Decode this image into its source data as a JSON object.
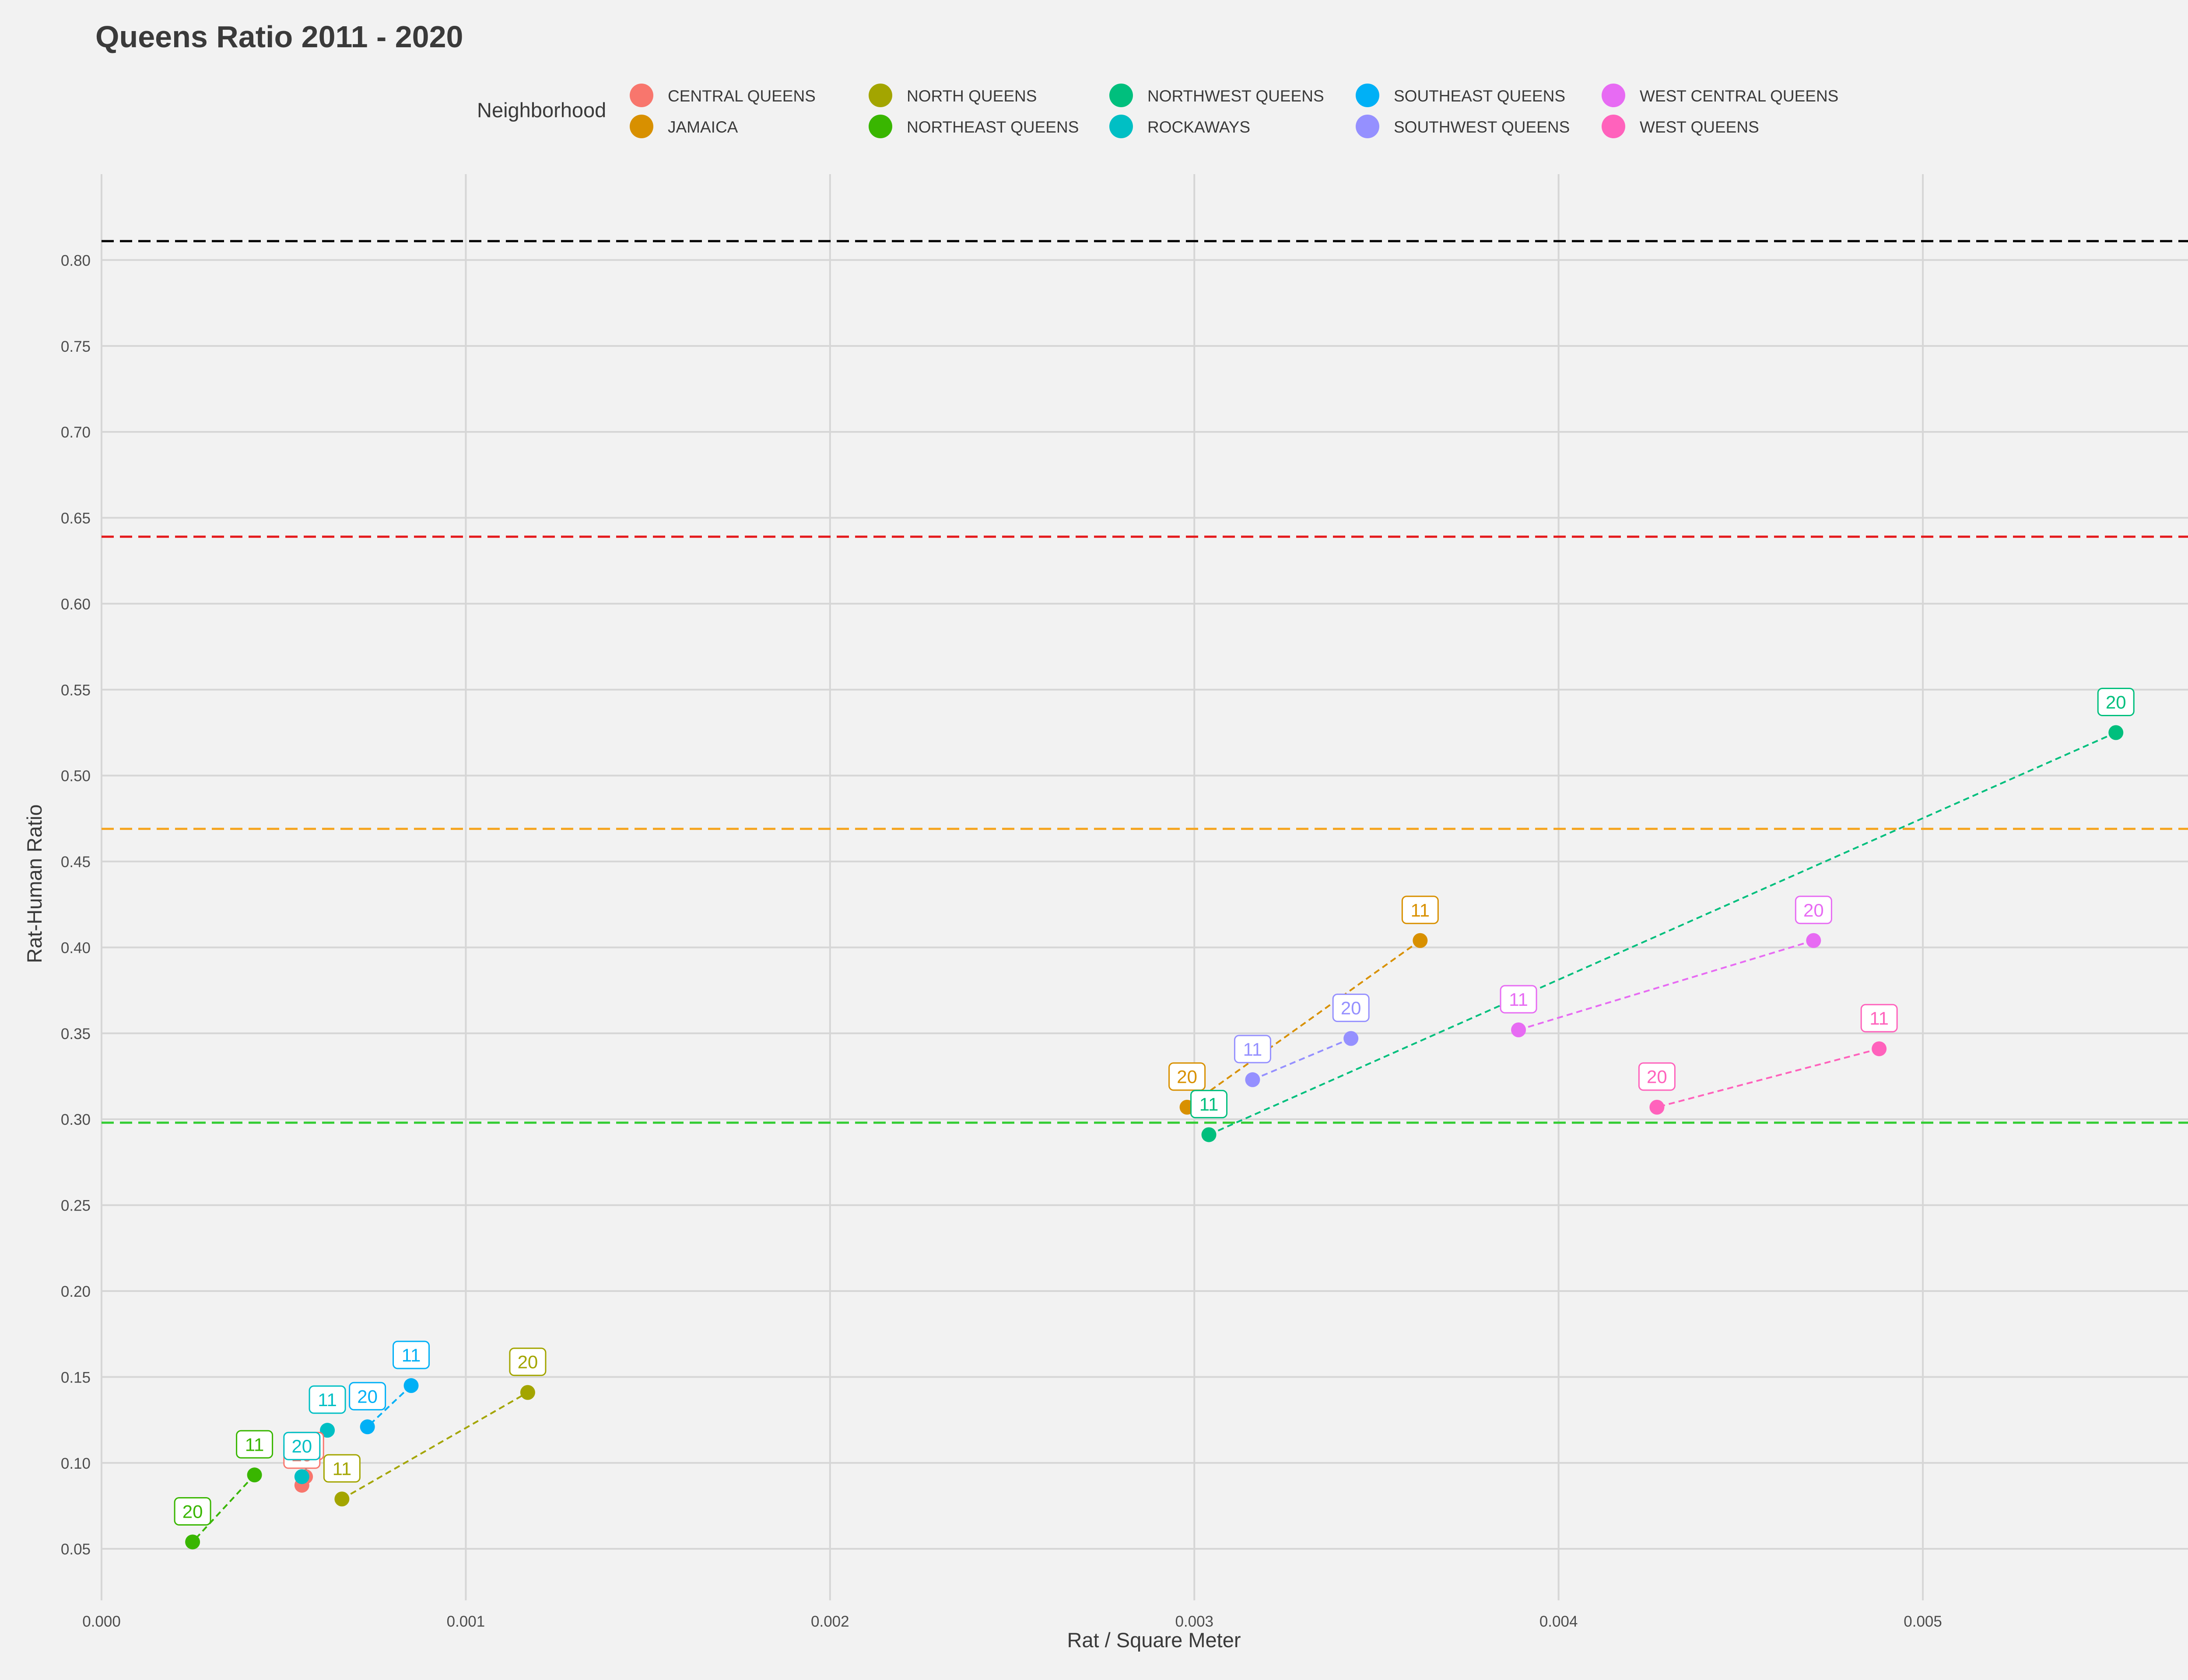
{
  "chart_data": {
    "type": "scatter",
    "title": "Queens Ratio 2011 - 2020",
    "xlabel": "Rat / Square Meter",
    "ylabel": "Rat-Human Ratio",
    "xlim": [
      0.0,
      0.0058
    ],
    "ylim": [
      0.02,
      0.85
    ],
    "x_ticks": [
      0.0,
      0.001,
      0.002,
      0.003,
      0.004,
      0.005
    ],
    "x_tick_labels": [
      "0.000",
      "0.001",
      "0.002",
      "0.003",
      "0.004",
      "0.005"
    ],
    "y_ticks": [
      0.05,
      0.1,
      0.15,
      0.2,
      0.25,
      0.3,
      0.35,
      0.4,
      0.45,
      0.5,
      0.55,
      0.6,
      0.65,
      0.7,
      0.75,
      0.8
    ],
    "y_tick_labels": [
      "0.05",
      "0.10",
      "0.15",
      "0.20",
      "0.25",
      "0.30",
      "0.35",
      "0.40",
      "0.45",
      "0.50",
      "0.55",
      "0.60",
      "0.65",
      "0.70",
      "0.75",
      "0.80"
    ],
    "grid": true,
    "legend": {
      "title": "Neighborhood",
      "placement": "top"
    },
    "reference_lines": [
      {
        "y": 0.811,
        "color": "#000000"
      },
      {
        "y": 0.639,
        "color": "#e41a1c"
      },
      {
        "y": 0.469,
        "color": "#f5a623"
      },
      {
        "y": 0.298,
        "color": "#33cc33"
      }
    ],
    "series": [
      {
        "name": "CENTRAL QUEENS",
        "color": "#F8766D",
        "x": [
          0.00056,
          0.00055
        ],
        "y": [
          0.092,
          0.087
        ],
        "labels": [
          "11",
          "20"
        ]
      },
      {
        "name": "JAMAICA",
        "color": "#D89000",
        "x": [
          0.00362,
          0.00298
        ],
        "y": [
          0.404,
          0.307
        ],
        "labels": [
          "11",
          "20"
        ]
      },
      {
        "name": "NORTH QUEENS",
        "color": "#A3A500",
        "x": [
          0.00066,
          0.00117
        ],
        "y": [
          0.079,
          0.141
        ],
        "labels": [
          "11",
          "20"
        ]
      },
      {
        "name": "NORTHEAST QUEENS",
        "color": "#39B600",
        "x": [
          0.00042,
          0.00025
        ],
        "y": [
          0.093,
          0.054
        ],
        "labels": [
          "11",
          "20"
        ]
      },
      {
        "name": "NORTHWEST QUEENS",
        "color": "#00BF7D",
        "x": [
          0.00304,
          0.00553
        ],
        "y": [
          0.291,
          0.525
        ],
        "labels": [
          "11",
          "20"
        ]
      },
      {
        "name": "ROCKAWAYS",
        "color": "#00BFC4",
        "x": [
          0.00062,
          0.00055
        ],
        "y": [
          0.119,
          0.092
        ],
        "labels": [
          "11",
          "20"
        ]
      },
      {
        "name": "SOUTHEAST QUEENS",
        "color": "#00B0F6",
        "x": [
          0.00085,
          0.00073
        ],
        "y": [
          0.145,
          0.121
        ],
        "labels": [
          "11",
          "20"
        ]
      },
      {
        "name": "SOUTHWEST QUEENS",
        "color": "#9590FF",
        "x": [
          0.00316,
          0.00343
        ],
        "y": [
          0.323,
          0.347
        ],
        "labels": [
          "11",
          "20"
        ]
      },
      {
        "name": "WEST CENTRAL QUEENS",
        "color": "#E76BF3",
        "x": [
          0.00389,
          0.0047
        ],
        "y": [
          0.352,
          0.404
        ],
        "labels": [
          "11",
          "20"
        ]
      },
      {
        "name": "WEST QUEENS",
        "color": "#FF62BC",
        "x": [
          0.00488,
          0.00427
        ],
        "y": [
          0.341,
          0.307
        ],
        "labels": [
          "11",
          "20"
        ]
      }
    ]
  }
}
